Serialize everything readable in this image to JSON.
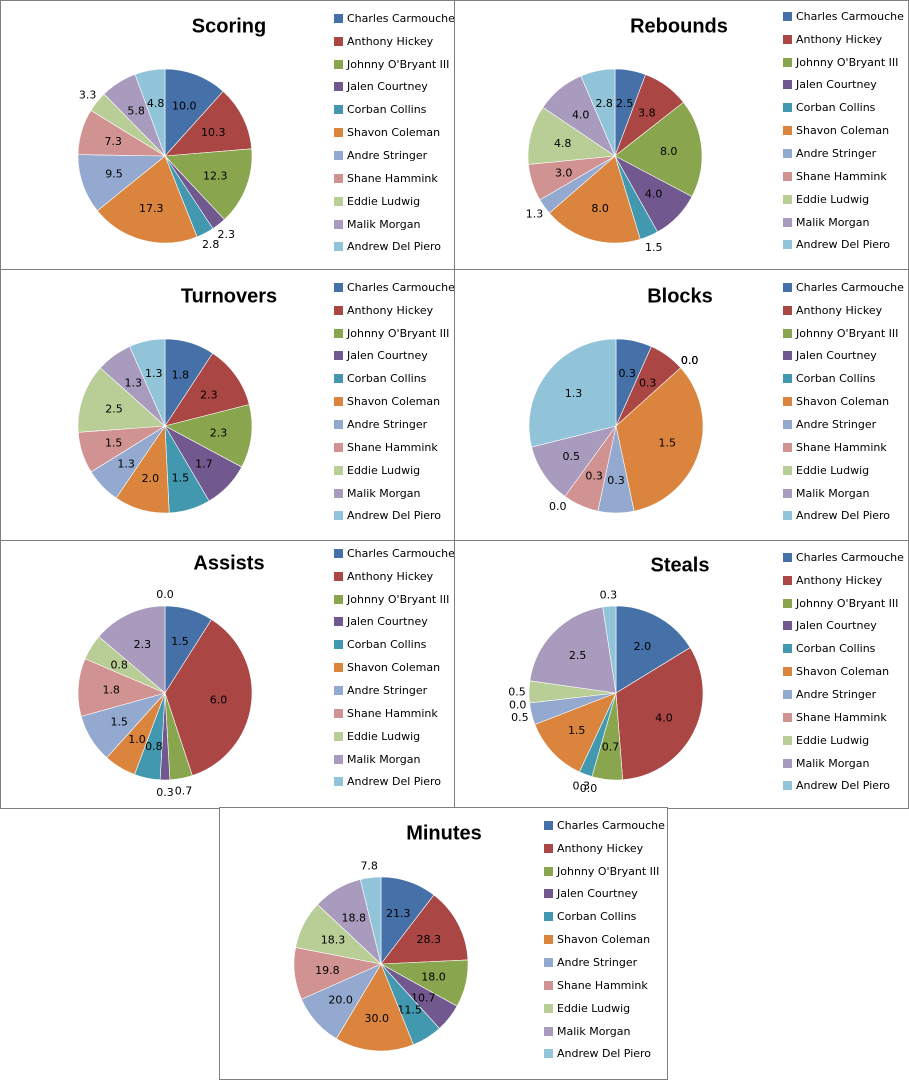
{
  "players": [
    "Charles Carmouche",
    "Anthony Hickey",
    "Johnny O'Bryant III",
    "Jalen Courtney",
    "Corban Collins",
    "Shavon Coleman",
    "Andre Stringer",
    "Shane Hammink",
    "Eddie Ludwig",
    "Malik Morgan",
    "Andrew Del Piero"
  ],
  "colors": [
    "#4571a8",
    "#aa4643",
    "#89a54e",
    "#71588f",
    "#4198af",
    "#db843d",
    "#93a9cf",
    "#d19392",
    "#b9cd96",
    "#a99bbd",
    "#91c4d9"
  ],
  "chart_data": [
    {
      "type": "pie",
      "title": "Scoring",
      "values": [
        10.0,
        10.3,
        12.3,
        2.3,
        2.8,
        17.3,
        9.5,
        7.3,
        3.3,
        5.8,
        4.8
      ],
      "labels": [
        "10.0",
        "10.3",
        "12.3",
        "2.3",
        "2.8",
        "17.3",
        "9.5",
        "7.3",
        "3.3",
        "5.8",
        "4.8"
      ]
    },
    {
      "type": "pie",
      "title": "Rebounds",
      "values": [
        2.5,
        3.8,
        8.0,
        4.0,
        1.5,
        8.0,
        1.3,
        3.0,
        4.8,
        4.0,
        2.8
      ],
      "labels": [
        "2.5",
        "3.8",
        "8.0",
        "4.0",
        "1.5",
        "8.0",
        "1.3",
        "3.0",
        "4.8",
        "4.0",
        "2.8"
      ]
    },
    {
      "type": "pie",
      "title": "Turnovers",
      "values": [
        1.8,
        2.3,
        2.3,
        1.7,
        1.5,
        2.0,
        1.3,
        1.5,
        2.5,
        1.3,
        1.3
      ],
      "labels": [
        "1.8",
        "2.3",
        "2.3",
        "1.7",
        "1.5",
        "2.0",
        "1.3",
        "1.5",
        "2.5",
        "1.3",
        "1.3"
      ]
    },
    {
      "type": "pie",
      "title": "Blocks",
      "values": [
        0.3,
        0.3,
        0.0,
        0.0,
        0.0,
        1.5,
        0.3,
        0.3,
        0.0,
        0.5,
        1.3
      ],
      "labels": [
        "0.3",
        "0.3",
        "0.0",
        "0.0",
        "0.0",
        "1.5",
        "0.3",
        "0.3",
        "0.0",
        "0.5",
        "1.3"
      ]
    },
    {
      "type": "pie",
      "title": "Assists",
      "values": [
        1.5,
        6.0,
        0.7,
        0.3,
        0.8,
        1.0,
        1.5,
        1.8,
        0.8,
        2.3,
        0.0
      ],
      "labels": [
        "1.5",
        "6.0",
        "0.7",
        "0.3",
        "0.8",
        "1.0",
        "1.5",
        "1.8",
        "0.8",
        "2.3",
        "0.0"
      ]
    },
    {
      "type": "pie",
      "title": "Steals",
      "values": [
        2.0,
        4.0,
        0.7,
        0.0,
        0.3,
        1.5,
        0.5,
        0.0,
        0.5,
        2.5,
        0.3
      ],
      "labels": [
        "2.0",
        "4.0",
        "0.7",
        "0.0",
        "0.3",
        "1.5",
        "0.5",
        "0.0",
        "0.5",
        "2.5",
        "0.3"
      ]
    },
    {
      "type": "pie",
      "title": "Minutes",
      "values": [
        21.3,
        28.3,
        18.0,
        10.7,
        11.5,
        30.0,
        20.0,
        19.8,
        18.3,
        18.8,
        7.8
      ],
      "labels": [
        "21.3",
        "28.3",
        "18.0",
        "10.7",
        "11.5",
        "30.0",
        "20.0",
        "19.8",
        "18.3",
        "18.8",
        "7.8"
      ]
    }
  ]
}
